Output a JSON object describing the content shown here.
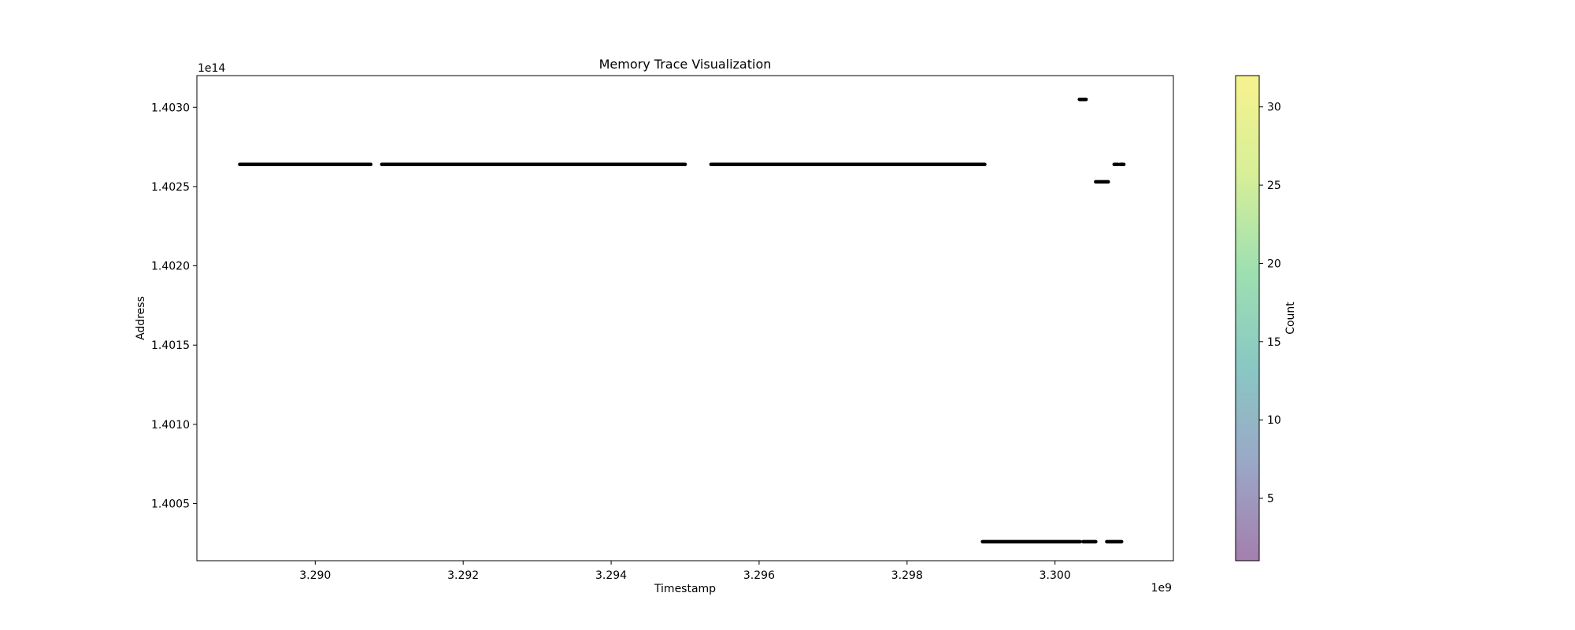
{
  "chart_data": {
    "type": "scatter",
    "title": "Memory Trace Visualization",
    "xlabel": "Timestamp",
    "ylabel": "Address",
    "x_offset_label": "1e9",
    "y_offset_label": "1e14",
    "xlim": [
      3288400000,
      3301600000
    ],
    "ylim": [
      140001400000000,
      140032000000000
    ],
    "x_ticks": [
      3290000000,
      3292000000,
      3294000000,
      3296000000,
      3298000000,
      3300000000
    ],
    "x_tick_labels": [
      "3.290",
      "3.292",
      "3.294",
      "3.296",
      "3.298",
      "3.300"
    ],
    "y_ticks": [
      140005000000000,
      140010000000000,
      140015000000000,
      140020000000000,
      140025000000000,
      140030000000000
    ],
    "y_tick_labels": [
      "1.4005",
      "1.4010",
      "1.4015",
      "1.4020",
      "1.4025",
      "1.4030"
    ],
    "grid": false,
    "point_color": "#000000",
    "segments": [
      {
        "x_start": 3288980000,
        "x_end": 3290750000,
        "y": 140026400000000
      },
      {
        "x_start": 3290900000,
        "x_end": 3295000000,
        "y": 140026400000000
      },
      {
        "x_start": 3295350000,
        "x_end": 3299050000,
        "y": 140026400000000
      },
      {
        "x_start": 3299020000,
        "x_end": 3300340000,
        "y": 140002600000000
      },
      {
        "x_start": 3300380000,
        "x_end": 3300550000,
        "y": 140002600000000
      },
      {
        "x_start": 3300700000,
        "x_end": 3300900000,
        "y": 140002600000000
      },
      {
        "x_start": 3300330000,
        "x_end": 3300420000,
        "y": 140030500000000
      },
      {
        "x_start": 3300550000,
        "x_end": 3300720000,
        "y": 140025300000000
      },
      {
        "x_start": 3300800000,
        "x_end": 3300850000,
        "y": 140026400000000
      },
      {
        "x_start": 3300880000,
        "x_end": 3300930000,
        "y": 140026400000000
      }
    ],
    "colorbar": {
      "label": "Count",
      "min": 1,
      "max": 32,
      "ticks": [
        5,
        10,
        15,
        20,
        25,
        30
      ],
      "colors": [
        "#a47fad",
        "#9ba7c7",
        "#89c8c3",
        "#9fe0b1",
        "#d8ef98",
        "#f6f28f"
      ]
    }
  }
}
